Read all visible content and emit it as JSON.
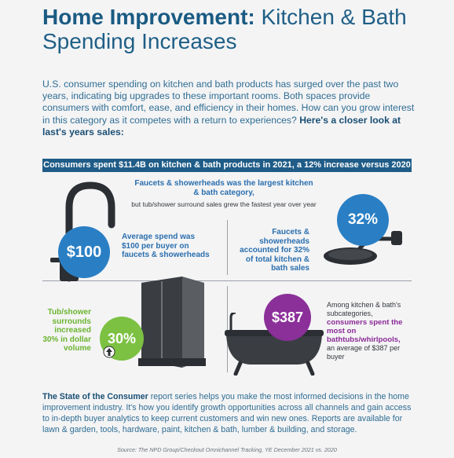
{
  "header": {
    "title_bold": "Home Improvement:",
    "title_rest": " Kitchen & Bath Spending Increases"
  },
  "intro": {
    "text": "U.S. consumer spending on kitchen and bath products has surged over the past two years, indicating big upgrades to these important rooms. Both spaces provide consumers with comfort, ease, and efficiency in their homes. How can you grow interest in this category as it competes with a return to experiences? ",
    "bold": "Here's a closer look at last's years sales:"
  },
  "banner": {
    "text": "Consumers spent $11.4B on kitchen & bath products in 2021, a 12% increase versus 2020"
  },
  "faucets_top": {
    "headline": "Faucets & showerheads was the largest kitchen & bath category,",
    "sub": "but tub/shower surround sales grew the fastest year over year"
  },
  "stat_100": {
    "value": "$100",
    "text": "Average spend was $100 per buyer on faucets & showerheads"
  },
  "stat_32": {
    "value": "32%",
    "text": "Faucets & showerheads accounted for 32% of total kitchen & bath sales"
  },
  "stat_30": {
    "value": "30%",
    "text": "Tub/shower surrounds increased 30% in dollar volume"
  },
  "stat_387": {
    "value": "$387",
    "pre": "Among kitchen & bath's subcategories,",
    "highlight": "consumers spent the most on bathtubs/whirlpools,",
    "post": "an average of $387 per buyer"
  },
  "footer": {
    "bold": "The State of the Consumer",
    "text": " report series helps you make the most informed decisions in the home improvement industry. It's how you identify growth opportunities across all channels and gain access to in-depth buyer analytics to keep current customers and win new ones. Reports are available for lawn & garden, tools, hardware, paint, kitchen & bath, lumber & building, and storage."
  },
  "source": {
    "text": "Source: The NPD Group/Checkout Omnichannel Tracking, YE December 2021 vs. 2020"
  },
  "colors": {
    "navy": "#1f5c87",
    "blue": "#2a7fc4",
    "green": "#7cc142",
    "purple": "#8b2f99"
  }
}
